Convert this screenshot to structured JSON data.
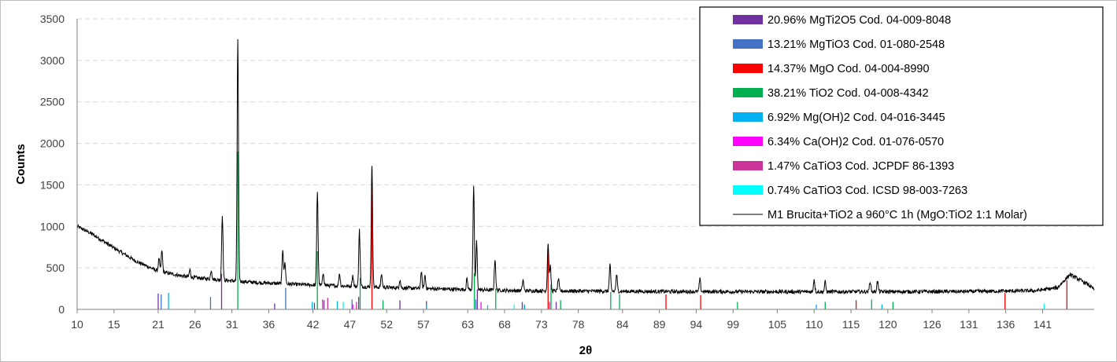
{
  "chart_data": {
    "type": "line",
    "xlabel": "2θ",
    "ylabel": "Counts",
    "xlim": [
      10,
      148
    ],
    "ylim": [
      0,
      3500
    ],
    "y_ticks": [
      0,
      500,
      1000,
      1500,
      2000,
      2500,
      3000,
      3500
    ],
    "x_ticks": [
      10,
      15,
      21,
      26,
      31,
      36,
      42,
      47,
      52,
      57,
      63,
      68,
      73,
      78,
      84,
      89,
      94,
      99,
      105,
      110,
      115,
      120,
      126,
      131,
      136,
      141
    ],
    "grid": "horizontal dashed",
    "legend_position": "top-right",
    "series": [
      {
        "name": "M1 Brucita+TiO2 a 960°C 1h (MgO:TiO2 1:1 Molar)",
        "color": "#000000",
        "background": [
          [
            10,
            1000
          ],
          [
            12,
            910
          ],
          [
            15,
            740
          ],
          [
            18,
            580
          ],
          [
            21,
            460
          ],
          [
            25,
            390
          ],
          [
            30,
            350
          ],
          [
            35,
            320
          ],
          [
            40,
            300
          ],
          [
            45,
            285
          ],
          [
            50,
            270
          ],
          [
            55,
            255
          ],
          [
            60,
            245
          ],
          [
            65,
            235
          ],
          [
            70,
            225
          ],
          [
            80,
            220
          ],
          [
            90,
            215
          ],
          [
            100,
            213
          ],
          [
            110,
            212
          ],
          [
            120,
            213
          ],
          [
            130,
            215
          ],
          [
            140,
            225
          ],
          [
            143,
            260
          ],
          [
            144.7,
            420
          ],
          [
            147,
            310
          ],
          [
            148,
            240
          ]
        ],
        "peaks": [
          [
            21.1,
            150
          ],
          [
            21.5,
            260
          ],
          [
            25.3,
            90
          ],
          [
            28.2,
            110
          ],
          [
            29.7,
            790
          ],
          [
            31.8,
            2900
          ],
          [
            37.9,
            420
          ],
          [
            38.2,
            250
          ],
          [
            42.6,
            1130
          ],
          [
            43.4,
            150
          ],
          [
            45.6,
            150
          ],
          [
            47.4,
            130
          ],
          [
            48.3,
            680
          ],
          [
            50.0,
            1440
          ],
          [
            51.3,
            160
          ],
          [
            53.8,
            100
          ],
          [
            56.7,
            200
          ],
          [
            57.2,
            160
          ],
          [
            62.9,
            130
          ],
          [
            63.8,
            1230
          ],
          [
            64.2,
            580
          ],
          [
            66.7,
            380
          ],
          [
            70.5,
            130
          ],
          [
            73.9,
            580
          ],
          [
            74.2,
            300
          ],
          [
            75.3,
            150
          ],
          [
            82.3,
            320
          ],
          [
            83.2,
            200
          ],
          [
            94.5,
            150
          ],
          [
            110.0,
            150
          ],
          [
            111.5,
            120
          ],
          [
            117.6,
            130
          ],
          [
            118.6,
            130
          ]
        ]
      }
    ],
    "phases": [
      {
        "label": "20.96% MgTi2O5 Cod. 04-009-8048",
        "color": "#7030A0",
        "lines": [
          [
            21.0,
            190
          ],
          [
            29.6,
            430
          ],
          [
            36.8,
            70
          ],
          [
            42.2,
            80
          ],
          [
            43.5,
            110
          ],
          [
            48.2,
            150
          ],
          [
            53.8,
            110
          ],
          [
            57.4,
            100
          ],
          [
            64.3,
            240
          ],
          [
            70.4,
            90
          ],
          [
            75.0,
            90
          ]
        ]
      },
      {
        "label": "13.21% MgTiO3 Cod. 01-080-2548",
        "color": "#4472C4",
        "lines": [
          [
            21.4,
            180
          ],
          [
            28.1,
            150
          ],
          [
            38.3,
            260
          ],
          [
            47.3,
            120
          ],
          [
            57.4,
            70
          ],
          [
            64.1,
            120
          ],
          [
            70.7,
            60
          ]
        ]
      },
      {
        "label": "14.37% MgO Cod. 04-004-8990",
        "color": "#FF0000",
        "lines": [
          [
            50.0,
            1700
          ],
          [
            73.9,
            780
          ],
          [
            89.9,
            180
          ],
          [
            94.6,
            170
          ],
          [
            115.7,
            110
          ],
          [
            135.9,
            200
          ],
          [
            144.3,
            350
          ]
        ]
      },
      {
        "label": "38.21% TiO2 Cod. 04-008-4342",
        "color": "#00B050",
        "lines": [
          [
            31.8,
            1900
          ],
          [
            42.6,
            700
          ],
          [
            48.4,
            380
          ],
          [
            51.5,
            110
          ],
          [
            63.9,
            440
          ],
          [
            66.8,
            250
          ],
          [
            74.3,
            300
          ],
          [
            75.6,
            110
          ],
          [
            82.4,
            210
          ],
          [
            83.6,
            180
          ],
          [
            99.6,
            90
          ],
          [
            111.5,
            90
          ],
          [
            117.8,
            120
          ],
          [
            120.7,
            90
          ]
        ]
      },
      {
        "label": "6.92% Mg(OH)2 Cod. 04-016-3445",
        "color": "#00B0F0",
        "lines": [
          [
            22.4,
            200
          ],
          [
            41.9,
            90
          ],
          [
            45.3,
            100
          ],
          [
            57.4,
            60
          ],
          [
            65.7,
            50
          ],
          [
            70.7,
            50
          ],
          [
            110.3,
            60
          ],
          [
            119.2,
            60
          ]
        ]
      },
      {
        "label": "6.34% Ca(OH)2 Cod. 01-076-0570",
        "color": "#FF00FF",
        "lines": [
          [
            43.3,
            120
          ],
          [
            47.4,
            60
          ],
          [
            64.8,
            90
          ]
        ]
      },
      {
        "label": "1.47% CaTiO3 Cod. JCPDF 86-1393",
        "color": "#CC3399",
        "lines": [
          [
            44.0,
            140
          ],
          [
            47.9,
            90
          ],
          [
            74.1,
            90
          ]
        ]
      },
      {
        "label": "0.74% CaTiO3 Cod. ICSD 98-003-7263",
        "color": "#00FFFF",
        "lines": [
          [
            46.1,
            90
          ],
          [
            69.3,
            60
          ],
          [
            141.2,
            70
          ]
        ]
      }
    ]
  }
}
